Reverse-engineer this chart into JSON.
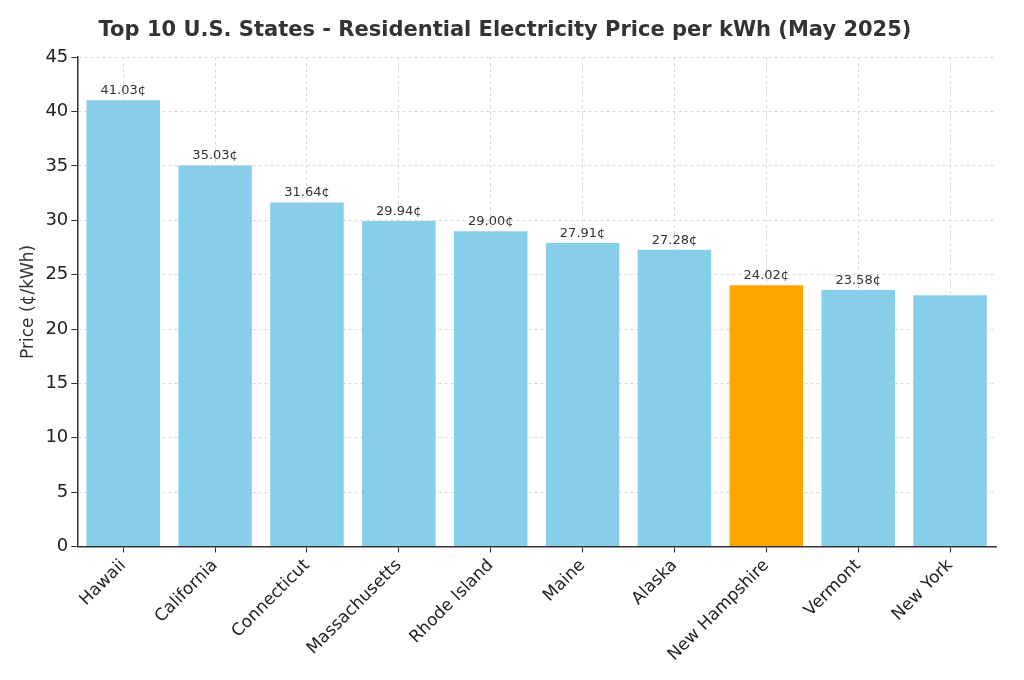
{
  "chart_data": {
    "type": "bar",
    "title": "Top 10 U.S. States - Residential Electricity Price per kWh (May 2025)",
    "ylabel": "Price (¢/kWh)",
    "categories": [
      "Hawaii",
      "California",
      "Connecticut",
      "Massachusetts",
      "Rhode Island",
      "Maine",
      "Alaska",
      "New Hampshire",
      "Vermont",
      "New York"
    ],
    "values": [
      41.03,
      35.03,
      31.64,
      29.94,
      29.0,
      27.91,
      27.28,
      24.02,
      23.58,
      23.1
    ],
    "colors": [
      "#87ceeb",
      "#87ceeb",
      "#87ceeb",
      "#87ceeb",
      "#87ceeb",
      "#87ceeb",
      "#87ceeb",
      "#ffa500",
      "#87ceeb",
      "#87ceeb"
    ],
    "value_labels": [
      "41.03¢",
      "35.03¢",
      "31.64¢",
      "29.94¢",
      "29.00¢",
      "27.91¢",
      "27.28¢",
      "24.02¢",
      "23.58¢",
      null
    ],
    "ylim": [
      0,
      45
    ],
    "yticks": [
      0,
      5,
      10,
      15,
      20,
      25,
      30,
      35,
      40,
      45
    ],
    "grid": true
  }
}
